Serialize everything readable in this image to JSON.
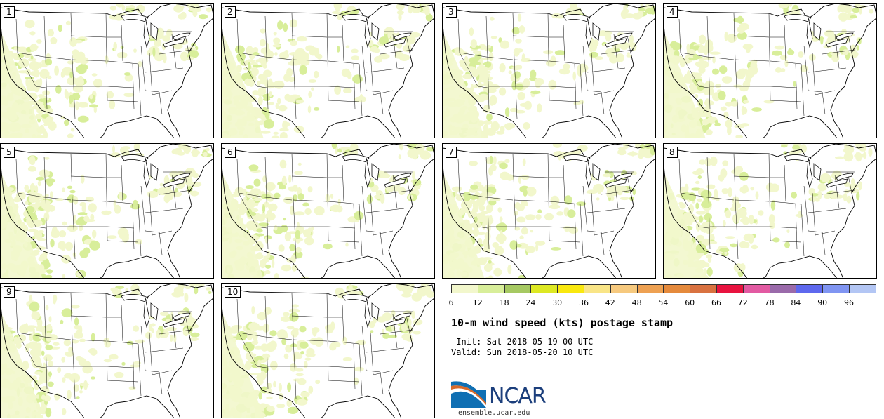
{
  "panels": [
    {
      "label": "1"
    },
    {
      "label": "2"
    },
    {
      "label": "3"
    },
    {
      "label": "4"
    },
    {
      "label": "5"
    },
    {
      "label": "6"
    },
    {
      "label": "7"
    },
    {
      "label": "8"
    },
    {
      "label": "9"
    },
    {
      "label": "10"
    }
  ],
  "legend": {
    "ticks": [
      "6",
      "12",
      "18",
      "24",
      "30",
      "36",
      "42",
      "48",
      "54",
      "60",
      "66",
      "72",
      "78",
      "84",
      "90",
      "96"
    ],
    "colors": [
      "#f2f7cc",
      "#d8ee9a",
      "#a6c962",
      "#dde823",
      "#f9e80f",
      "#f9e587",
      "#f6c97e",
      "#eea152",
      "#e58a3c",
      "#d97240",
      "#e8133f",
      "#e25aa2",
      "#9a6aaa",
      "#5e68ee",
      "#8095f2",
      "#b3c6f4"
    ]
  },
  "title": "10-m wind speed (kts) postage stamp",
  "init_text": " Init: Sat 2018-05-19 00 UTC",
  "valid_text": "Valid: Sun 2018-05-20 10 UTC",
  "logo": {
    "name": "ncar-logo",
    "text": "NCAR"
  },
  "website": "ensemble.ucar.edu",
  "map_colors": {
    "light": "#f2f7cc",
    "medium": "#d8ee9a",
    "border": "#000000"
  }
}
